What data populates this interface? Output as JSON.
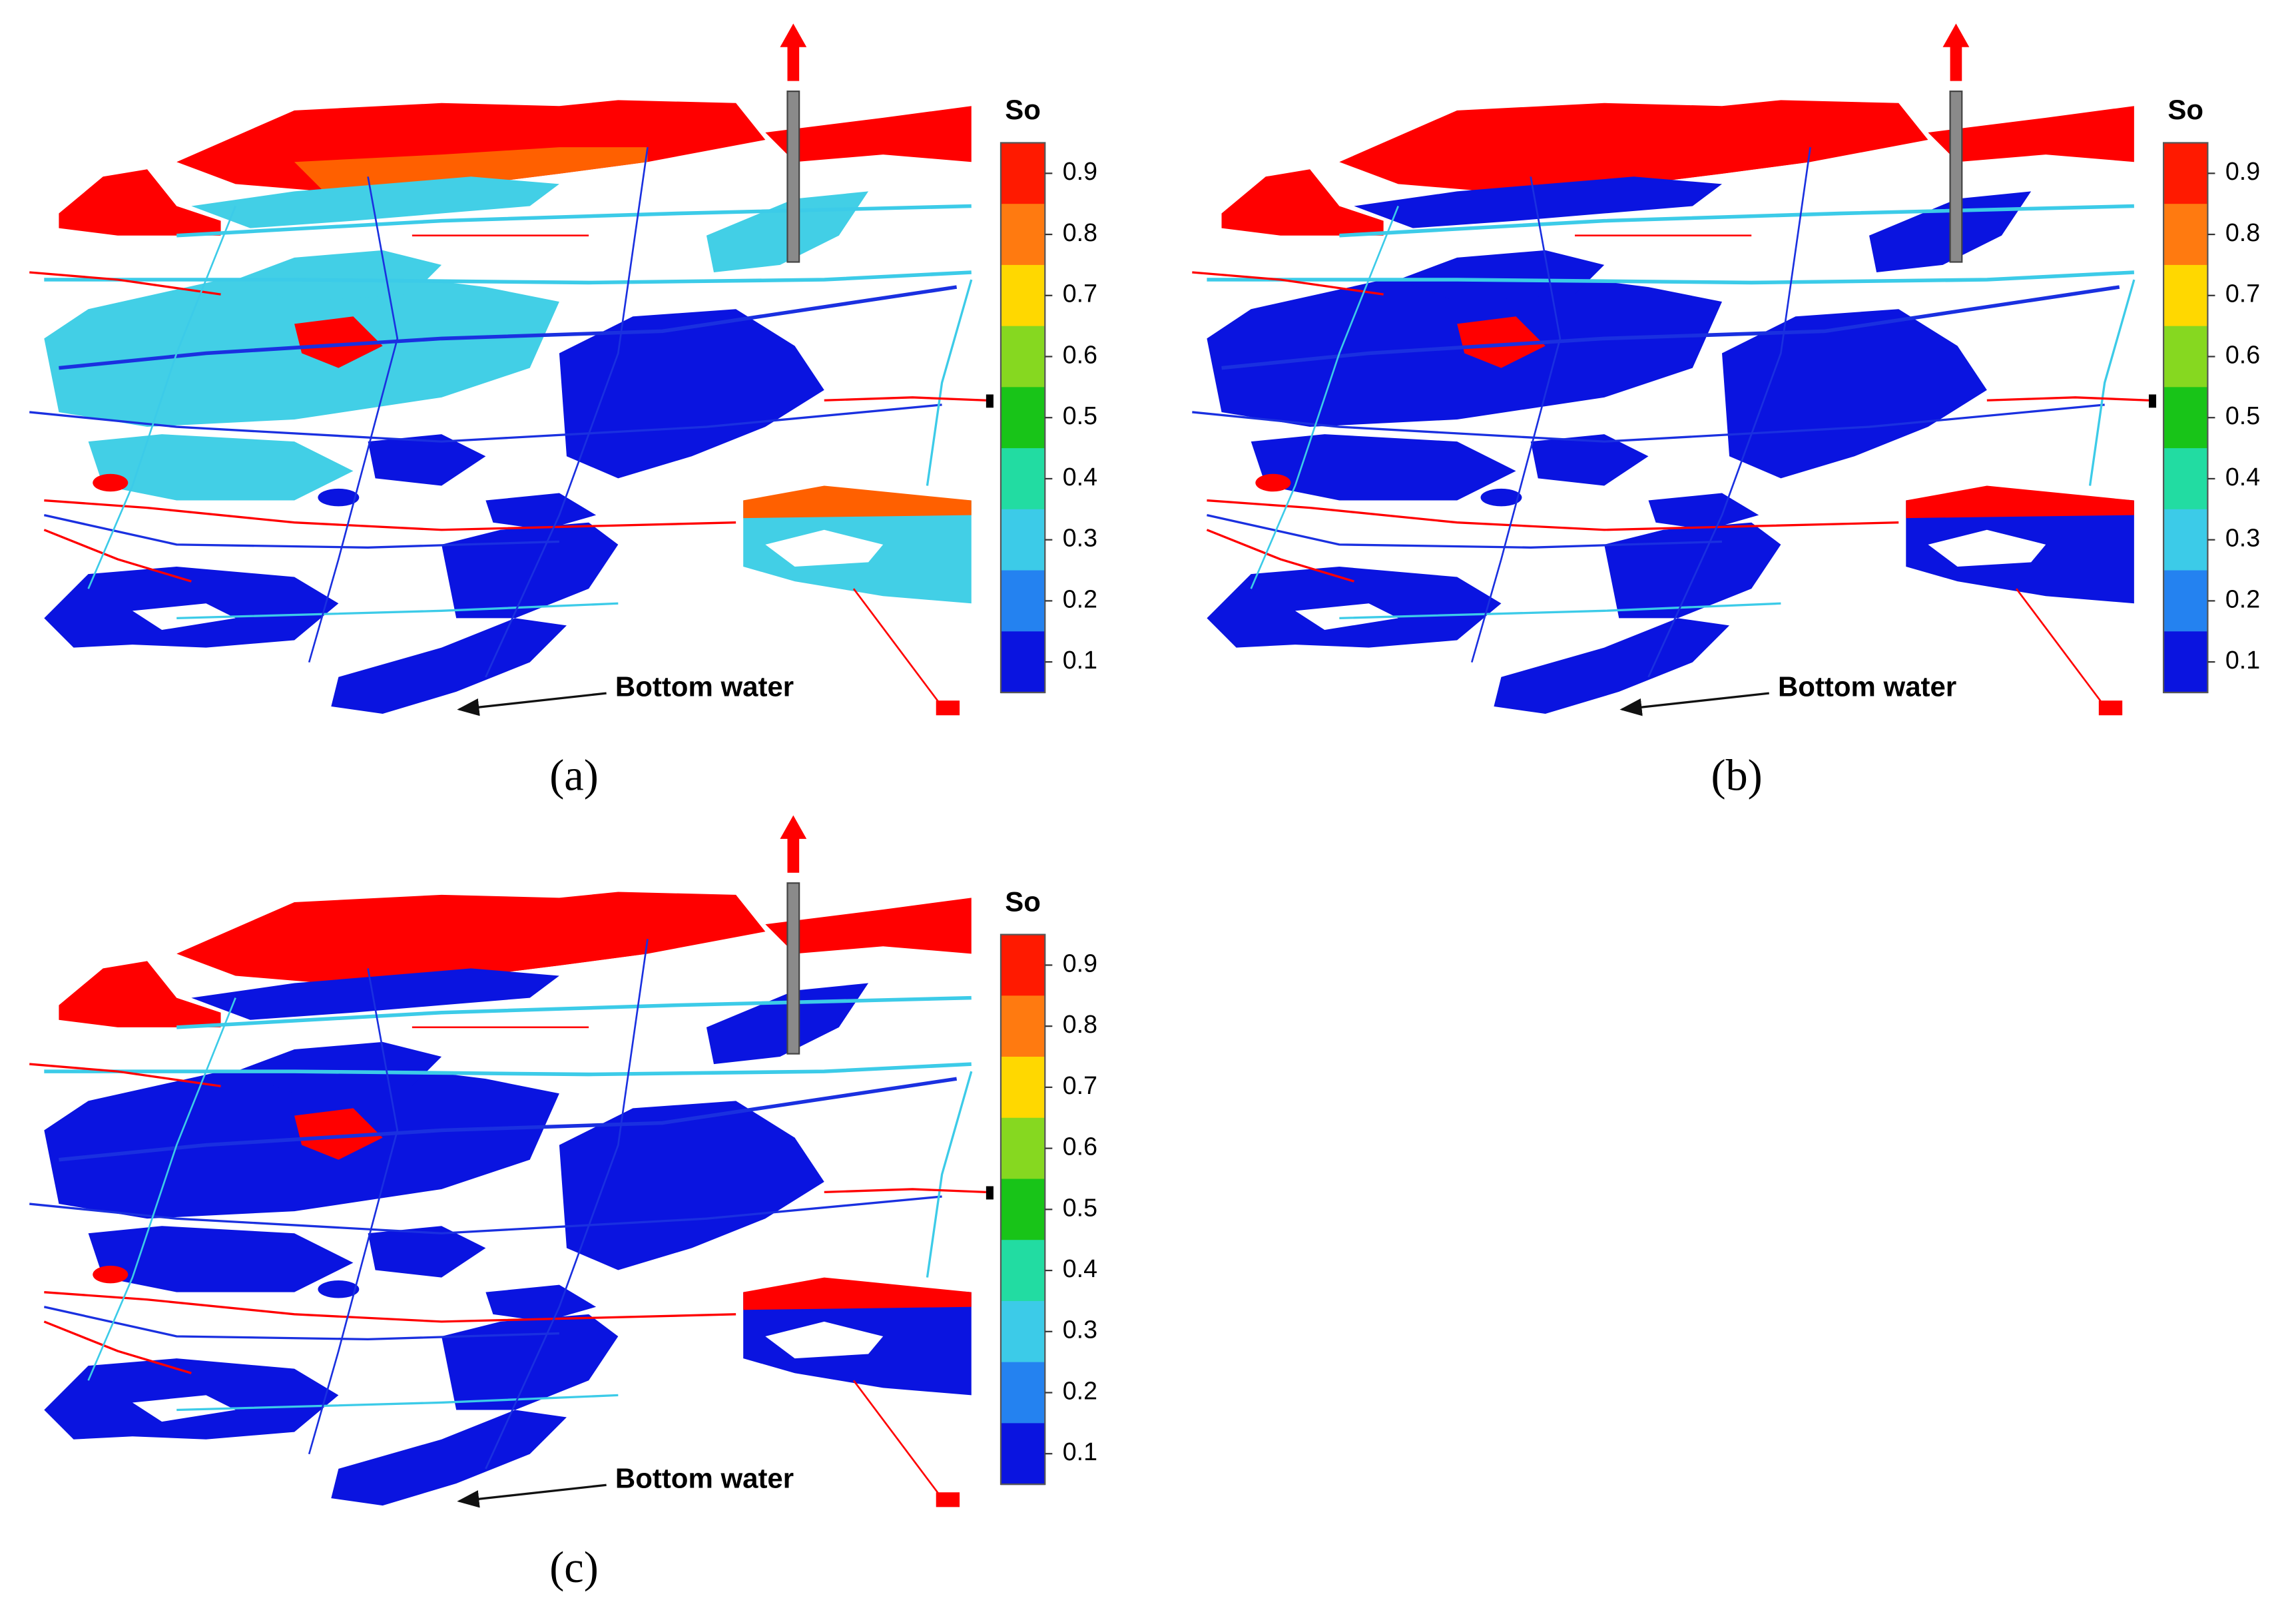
{
  "panels": [
    {
      "label": "(a)",
      "annotation": "Bottom water",
      "colorbar": {
        "title": "So",
        "ticks": [
          0.9,
          0.8,
          0.7,
          0.6,
          0.5,
          0.4,
          0.3,
          0.2,
          0.1
        ],
        "colors": [
          "#ff1a00",
          "#ff7a10",
          "#ffd800",
          "#86d820",
          "#18c418",
          "#22dca2",
          "#3ccbe8",
          "#2482f0",
          "#0a14e0"
        ]
      }
    },
    {
      "label": "(b)",
      "annotation": "Bottom water",
      "colorbar": {
        "title": "So",
        "ticks": [
          0.9,
          0.8,
          0.7,
          0.6,
          0.5,
          0.4,
          0.3,
          0.2,
          0.1
        ],
        "colors": [
          "#ff1a00",
          "#ff7a10",
          "#ffd800",
          "#86d820",
          "#18c418",
          "#22dca2",
          "#3ccbe8",
          "#2482f0",
          "#0a14e0"
        ]
      }
    },
    {
      "label": "(c)",
      "annotation": "Bottom water",
      "colorbar": {
        "title": "So",
        "ticks": [
          0.9,
          0.8,
          0.7,
          0.6,
          0.5,
          0.4,
          0.3,
          0.2,
          0.1
        ],
        "colors": [
          "#ff1a00",
          "#ff7a10",
          "#ffd800",
          "#86d820",
          "#18c418",
          "#22dca2",
          "#3ccbe8",
          "#2482f0",
          "#0a14e0"
        ]
      }
    }
  ]
}
